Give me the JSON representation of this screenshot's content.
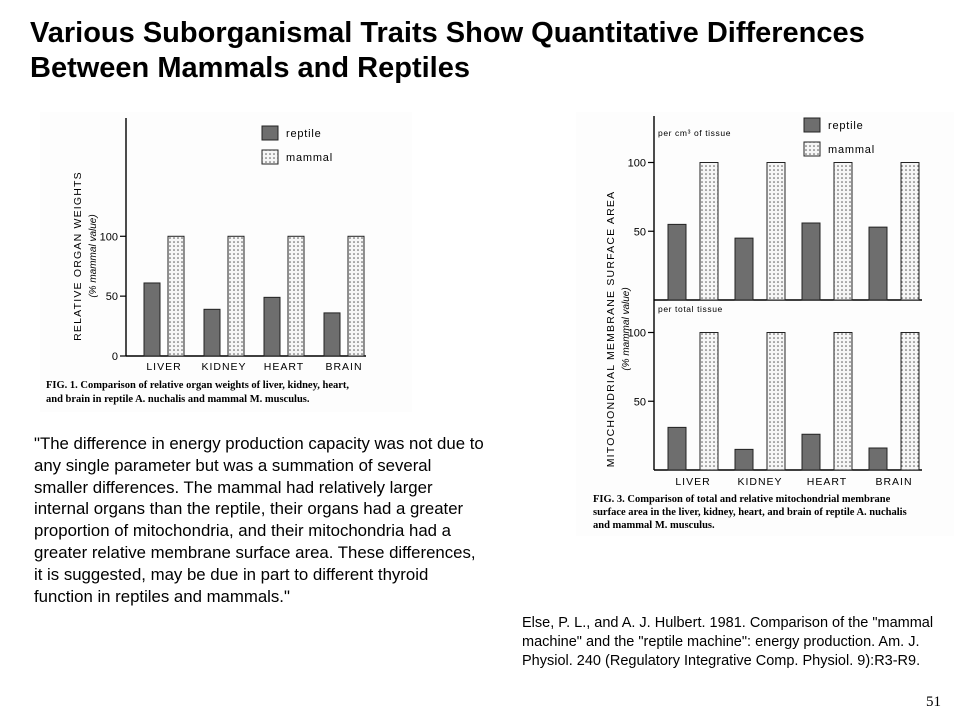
{
  "slide": {
    "title": "Various Suborganismal Traits Show Quantitative Differences Between Mammals and Reptiles",
    "quote": "\"The difference in energy production capacity was not due to any single parameter but was a summation of several smaller differences.  The mammal had relatively larger internal organs than the reptile, their organs had a greater proportion of mitochondria, and their mitochondria had a greater relative membrane surface area. These differences, it is suggested, may be due in part to different thyroid function in reptiles and mammals.\"",
    "citation": "Else, P. L., and A. J. Hulbert. 1981. Comparison of the \"mammal machine\" and the \"reptile machine\": energy production. Am. J. Physiol. 240 (Regulatory Integrative Comp. Physiol. 9):R3-R9.",
    "page_number": "51"
  },
  "colors": {
    "reptile_fill": "#6e6e6e",
    "mammal_fill": "#f4f4f4",
    "axis": "#000000"
  },
  "chart_data": [
    {
      "type": "bar",
      "id": "fig1",
      "categories": [
        "LIVER",
        "KIDNEY",
        "HEART",
        "BRAIN"
      ],
      "series": [
        {
          "name": "reptile",
          "values": [
            61,
            39,
            49,
            36
          ]
        },
        {
          "name": "mammal",
          "values": [
            100,
            100,
            100,
            100
          ]
        }
      ],
      "ylabel": "RELATIVE ORGAN WEIGHTS",
      "ylabel_sub": "(% mammal value)",
      "yticks": [
        0,
        50,
        100
      ],
      "ylim": [
        0,
        140
      ],
      "legend": "top-right",
      "caption_lines": [
        "FIG. 1.  Comparison of relative organ weights of liver, kidney, heart,",
        "and brain in reptile A. nuchalis and mammal M. musculus."
      ]
    },
    {
      "type": "bar",
      "id": "fig3",
      "categories": [
        "LIVER",
        "KIDNEY",
        "HEART",
        "BRAIN"
      ],
      "ylabel": "MITOCHONDRIAL MEMBRANE SURFACE AREA",
      "ylabel_sub": "(% mammal value)",
      "legend": "top-right",
      "panels": [
        {
          "label": "per cm³ of tissue",
          "yticks": [
            50,
            100
          ],
          "ylim": [
            0,
            112
          ],
          "series": [
            {
              "name": "reptile",
              "values": [
                55,
                45,
                56,
                53
              ]
            },
            {
              "name": "mammal",
              "values": [
                100,
                100,
                100,
                100
              ]
            }
          ]
        },
        {
          "label": "per total tissue",
          "yticks": [
            50,
            100
          ],
          "ylim": [
            0,
            112
          ],
          "series": [
            {
              "name": "reptile",
              "values": [
                31,
                15,
                26,
                16
              ]
            },
            {
              "name": "mammal",
              "values": [
                100,
                100,
                100,
                100
              ]
            }
          ]
        }
      ],
      "caption_lines": [
        "FIG. 3.  Comparison of total and relative mitochondrial membrane",
        "surface area in the liver, kidney, heart, and brain of reptile A. nuchalis",
        "and mammal M. musculus."
      ]
    }
  ]
}
